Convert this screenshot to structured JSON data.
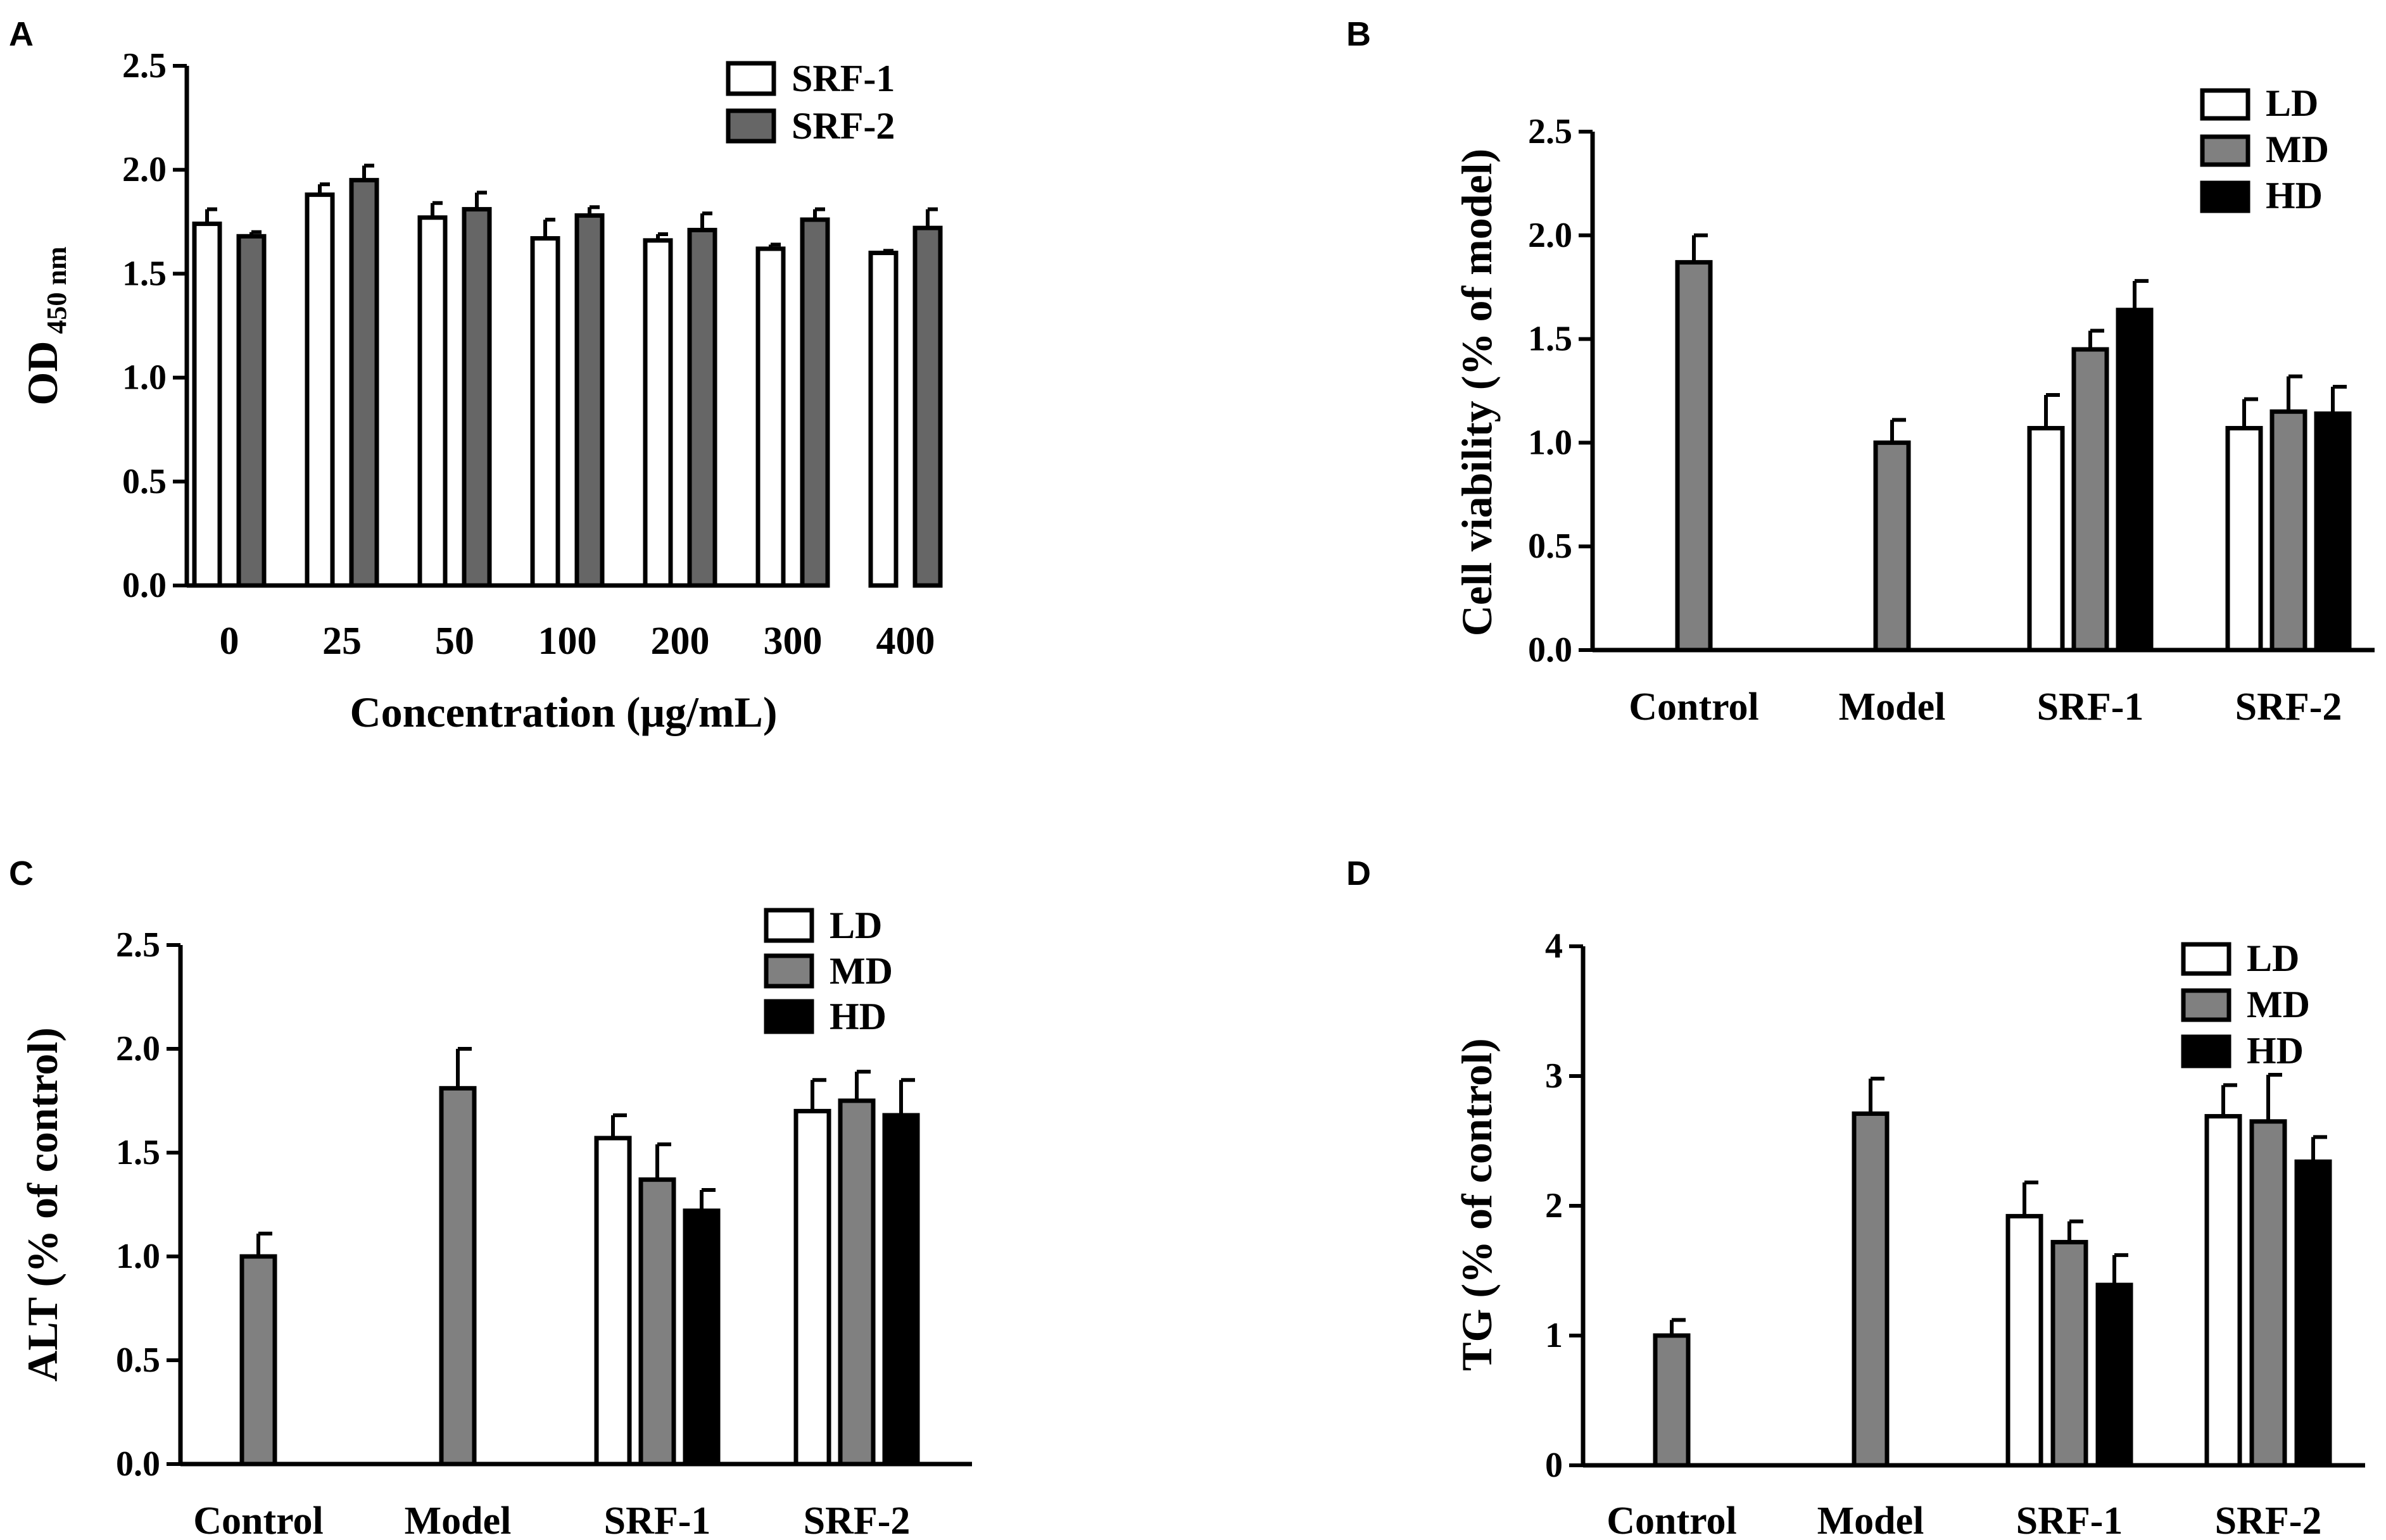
{
  "colors": {
    "white": "#ffffff",
    "gray_A": "#666666",
    "gray": "#808080",
    "black": "#000000"
  },
  "chart_data": [
    {
      "type": "bar",
      "panel": "A",
      "xlabel": "Concentration (μg/mL)",
      "ylabel": "OD",
      "ylabel_sub": "450 nm",
      "ylim": [
        0,
        2.5
      ],
      "yticks": [
        "0.0",
        "0.5",
        "1.0",
        "1.5",
        "2.0",
        "2.5"
      ],
      "categories": [
        "0",
        "25",
        "50",
        "100",
        "200",
        "300",
        "400"
      ],
      "legend_position": "top-right",
      "series": [
        {
          "name": "SRF-1",
          "color": "#ffffff",
          "values": [
            1.74,
            1.88,
            1.77,
            1.67,
            1.66,
            1.62,
            1.6
          ],
          "errors": [
            0.07,
            0.05,
            0.07,
            0.09,
            0.03,
            0.02,
            0.01
          ]
        },
        {
          "name": "SRF-2",
          "color": "#666666",
          "values": [
            1.68,
            1.95,
            1.81,
            1.78,
            1.71,
            1.76,
            1.72
          ],
          "errors": [
            0.02,
            0.07,
            0.08,
            0.04,
            0.08,
            0.05,
            0.09
          ]
        }
      ]
    },
    {
      "type": "bar",
      "panel": "B",
      "xlabel": "",
      "ylabel": "Cell viability (% of model)",
      "ylim": [
        0,
        2.5
      ],
      "yticks": [
        "0.0",
        "0.5",
        "1.0",
        "1.5",
        "2.0",
        "2.5"
      ],
      "categories": [
        "Control",
        "Model",
        "SRF-1",
        "SRF-2"
      ],
      "legend_position": "top-right",
      "series": [
        {
          "name": "LD",
          "color": "#ffffff",
          "values": [
            null,
            null,
            1.07,
            1.07
          ],
          "errors": [
            null,
            null,
            0.16,
            0.14
          ]
        },
        {
          "name": "MD",
          "color": "#808080",
          "values": [
            1.87,
            1.0,
            1.45,
            1.15
          ],
          "errors": [
            0.13,
            0.11,
            0.09,
            0.17
          ]
        },
        {
          "name": "HD",
          "color": "#000000",
          "values": [
            null,
            null,
            1.64,
            1.14
          ],
          "errors": [
            null,
            null,
            0.14,
            0.13
          ]
        }
      ]
    },
    {
      "type": "bar",
      "panel": "C",
      "xlabel": "",
      "ylabel": "ALT (% of control)",
      "ylim": [
        0,
        2.5
      ],
      "yticks": [
        "0.0",
        "0.5",
        "1.0",
        "1.5",
        "2.0",
        "2.5"
      ],
      "categories": [
        "Control",
        "Model",
        "SRF-1",
        "SRF-2"
      ],
      "legend_position": "top-right",
      "series": [
        {
          "name": "LD",
          "color": "#ffffff",
          "values": [
            null,
            null,
            1.57,
            1.7
          ],
          "errors": [
            null,
            null,
            0.11,
            0.15
          ]
        },
        {
          "name": "MD",
          "color": "#808080",
          "values": [
            1.0,
            1.81,
            1.37,
            1.75
          ],
          "errors": [
            0.11,
            0.19,
            0.17,
            0.14
          ]
        },
        {
          "name": "HD",
          "color": "#000000",
          "values": [
            null,
            null,
            1.22,
            1.68
          ],
          "errors": [
            null,
            null,
            0.1,
            0.17
          ]
        }
      ]
    },
    {
      "type": "bar",
      "panel": "D",
      "xlabel": "",
      "ylabel": "TG (% of control)",
      "ylim": [
        0,
        4
      ],
      "yticks": [
        "0",
        "1",
        "2",
        "3",
        "4"
      ],
      "categories": [
        "Control",
        "Model",
        "SRF-1",
        "SRF-2"
      ],
      "legend_position": "top-right",
      "series": [
        {
          "name": "LD",
          "color": "#ffffff",
          "values": [
            null,
            null,
            1.92,
            2.69
          ],
          "errors": [
            null,
            null,
            0.26,
            0.24
          ]
        },
        {
          "name": "MD",
          "color": "#808080",
          "values": [
            1.0,
            2.71,
            1.72,
            2.65
          ],
          "errors": [
            0.12,
            0.27,
            0.16,
            0.36
          ]
        },
        {
          "name": "HD",
          "color": "#000000",
          "values": [
            null,
            null,
            1.39,
            2.34
          ],
          "errors": [
            null,
            null,
            0.23,
            0.19
          ]
        }
      ]
    }
  ]
}
